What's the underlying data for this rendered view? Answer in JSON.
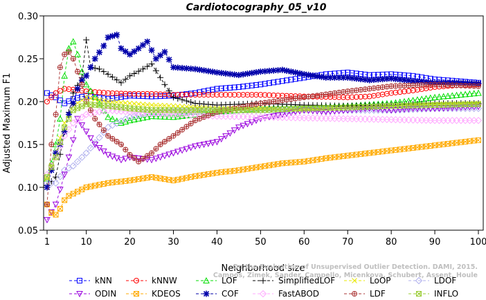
{
  "chart_data": {
    "type": "line",
    "title": "Cardiotocography_05_v10",
    "xlabel": "Neighborhood size",
    "ylabel": "Adjusted Maximum F1",
    "xlim": [
      1,
      100
    ],
    "ylim": [
      0.05,
      0.3
    ],
    "x_ticks": [
      1,
      10,
      20,
      30,
      40,
      50,
      60,
      70,
      80,
      90,
      100
    ],
    "y_ticks": [
      0.05,
      0.1,
      0.15,
      0.2,
      0.25,
      0.3
    ],
    "y_tick_labels": [
      "0.05",
      "0.10",
      "0.15",
      "0.20",
      "0.25",
      "0.30"
    ],
    "grid": false,
    "legend_position": "bottom",
    "watermark": "Campos, Zimek, Sander, Campello, Micenkova, Schubert, Assent, Houle\nOn the Evaluation of Unsupervised Outlier Detection. DAMI, 2015.",
    "series": [
      {
        "name": "kNN",
        "color": "#0000ff",
        "marker": "square",
        "dash": "4,3",
        "x": [
          1,
          3,
          5,
          7,
          10,
          15,
          20,
          25,
          30,
          35,
          40,
          45,
          50,
          55,
          60,
          65,
          70,
          75,
          80,
          85,
          90,
          95,
          100
        ],
        "y": [
          0.21,
          0.205,
          0.198,
          0.203,
          0.207,
          0.203,
          0.207,
          0.206,
          0.207,
          0.21,
          0.215,
          0.217,
          0.22,
          0.224,
          0.228,
          0.232,
          0.234,
          0.231,
          0.232,
          0.23,
          0.226,
          0.224,
          0.222
        ]
      },
      {
        "name": "kNNW",
        "color": "#ff0000",
        "marker": "circle",
        "dash": "4,3",
        "x": [
          1,
          3,
          5,
          7,
          10,
          15,
          20,
          25,
          30,
          40,
          50,
          60,
          70,
          75,
          80,
          85,
          90,
          95,
          100
        ],
        "y": [
          0.2,
          0.21,
          0.215,
          0.214,
          0.212,
          0.21,
          0.209,
          0.209,
          0.208,
          0.208,
          0.208,
          0.206,
          0.205,
          0.206,
          0.21,
          0.213,
          0.217,
          0.219,
          0.22
        ]
      },
      {
        "name": "LOF",
        "color": "#00dd00",
        "marker": "triangle",
        "dash": "4,3",
        "x": [
          1,
          2,
          3,
          4,
          5,
          6,
          7,
          8,
          9,
          10,
          12,
          15,
          18,
          20,
          25,
          30,
          35,
          40,
          50,
          60,
          70,
          80,
          90,
          100
        ],
        "y": [
          0.11,
          0.128,
          0.15,
          0.18,
          0.23,
          0.262,
          0.27,
          0.255,
          0.235,
          0.22,
          0.205,
          0.182,
          0.175,
          0.178,
          0.183,
          0.182,
          0.185,
          0.188,
          0.192,
          0.193,
          0.195,
          0.198,
          0.205,
          0.21
        ]
      },
      {
        "name": "SimplifiedLOF",
        "color": "#000000",
        "marker": "plus",
        "dash": "4,3",
        "x": [
          1,
          3,
          5,
          7,
          9,
          10,
          11,
          13,
          15,
          18,
          20,
          23,
          25,
          28,
          30,
          35,
          40,
          50,
          60,
          70,
          80,
          90,
          100
        ],
        "y": [
          0.102,
          0.112,
          0.165,
          0.21,
          0.228,
          0.272,
          0.24,
          0.238,
          0.232,
          0.222,
          0.23,
          0.238,
          0.244,
          0.22,
          0.205,
          0.198,
          0.196,
          0.198,
          0.196,
          0.195,
          0.196,
          0.198,
          0.198
        ]
      },
      {
        "name": "LoOP",
        "color": "#e8e800",
        "marker": "x",
        "dash": "4,3",
        "x": [
          1,
          3,
          5,
          7,
          10,
          15,
          20,
          25,
          30,
          40,
          50,
          60,
          70,
          80,
          90,
          100
        ],
        "y": [
          0.11,
          0.14,
          0.175,
          0.195,
          0.205,
          0.2,
          0.198,
          0.196,
          0.195,
          0.192,
          0.192,
          0.19,
          0.193,
          0.195,
          0.197,
          0.198
        ]
      },
      {
        "name": "LDOF",
        "color": "#b0b0ee",
        "marker": "diamond",
        "dash": "4,3",
        "x": [
          1,
          3,
          5,
          7,
          10,
          15,
          20,
          25,
          30,
          40,
          50,
          60,
          70,
          80,
          90,
          100
        ],
        "y": [
          0.105,
          0.105,
          0.12,
          0.125,
          0.14,
          0.17,
          0.182,
          0.187,
          0.188,
          0.189,
          0.19,
          0.19,
          0.19,
          0.19,
          0.192,
          0.192
        ]
      },
      {
        "name": "ODIN",
        "color": "#9900dd",
        "marker": "triangle-down",
        "dash": "4,3",
        "x": [
          1,
          3,
          5,
          7,
          8,
          10,
          12,
          15,
          18,
          20,
          25,
          30,
          35,
          40,
          45,
          50,
          55,
          60,
          65,
          70,
          75,
          80,
          85,
          90,
          95,
          100
        ],
        "y": [
          0.062,
          0.08,
          0.115,
          0.155,
          0.18,
          0.165,
          0.15,
          0.138,
          0.132,
          0.135,
          0.132,
          0.14,
          0.148,
          0.153,
          0.17,
          0.18,
          0.185,
          0.19,
          0.188,
          0.19,
          0.192,
          0.19,
          0.192,
          0.192,
          0.193,
          0.194
        ]
      },
      {
        "name": "KDEOS",
        "color": "#ffaa00",
        "marker": "square-x",
        "dash": "4,3",
        "x": [
          1,
          2,
          3,
          4,
          5,
          6,
          8,
          10,
          15,
          20,
          25,
          30,
          35,
          40,
          45,
          50,
          55,
          60,
          65,
          70,
          75,
          80,
          85,
          90,
          95,
          100
        ],
        "y": [
          0.08,
          0.07,
          0.068,
          0.075,
          0.085,
          0.09,
          0.095,
          0.1,
          0.105,
          0.108,
          0.112,
          0.108,
          0.113,
          0.117,
          0.12,
          0.124,
          0.128,
          0.13,
          0.134,
          0.137,
          0.14,
          0.143,
          0.146,
          0.149,
          0.152,
          0.155
        ]
      },
      {
        "name": "COF",
        "color": "#0000aa",
        "marker": "asterisk",
        "dash": "4,3",
        "x": [
          1,
          2,
          3,
          4,
          5,
          6,
          7,
          8,
          9,
          10,
          12,
          14,
          15,
          17,
          18,
          20,
          22,
          24,
          26,
          28,
          30,
          35,
          40,
          45,
          50,
          55,
          60,
          65,
          70,
          75,
          80,
          85,
          90,
          95,
          100
        ],
        "y": [
          0.1,
          0.12,
          0.14,
          0.15,
          0.165,
          0.185,
          0.198,
          0.215,
          0.225,
          0.23,
          0.25,
          0.265,
          0.275,
          0.278,
          0.262,
          0.255,
          0.262,
          0.27,
          0.25,
          0.258,
          0.24,
          0.238,
          0.234,
          0.231,
          0.235,
          0.237,
          0.232,
          0.228,
          0.228,
          0.225,
          0.227,
          0.224,
          0.222,
          0.222,
          0.221
        ]
      },
      {
        "name": "FastABOD",
        "color": "#ffaaff",
        "marker": "diamond",
        "dash": "4,3",
        "x": [
          1,
          3,
          5,
          7,
          10,
          15,
          20,
          25,
          30,
          40,
          50,
          60,
          70,
          80,
          90,
          100
        ],
        "y": [
          0.115,
          0.135,
          0.16,
          0.175,
          0.185,
          0.19,
          0.188,
          0.186,
          0.185,
          0.183,
          0.182,
          0.181,
          0.18,
          0.179,
          0.178,
          0.178
        ]
      },
      {
        "name": "LDF",
        "color": "#aa3333",
        "marker": "circle-plus",
        "dash": "4,3",
        "x": [
          1,
          2,
          3,
          4,
          5,
          6,
          7,
          8,
          9,
          10,
          12,
          15,
          18,
          20,
          22,
          25,
          27,
          30,
          35,
          40,
          50,
          60,
          70,
          80,
          90,
          100
        ],
        "y": [
          0.08,
          0.15,
          0.185,
          0.24,
          0.255,
          0.258,
          0.25,
          0.235,
          0.22,
          0.2,
          0.18,
          0.16,
          0.15,
          0.138,
          0.13,
          0.14,
          0.15,
          0.16,
          0.178,
          0.188,
          0.198,
          0.205,
          0.212,
          0.218,
          0.22,
          0.218
        ]
      },
      {
        "name": "INFLO",
        "color": "#99cc33",
        "marker": "square-x",
        "dash": "4,3",
        "x": [
          1,
          3,
          5,
          7,
          10,
          15,
          20,
          25,
          30,
          40,
          50,
          60,
          70,
          80,
          90,
          100
        ],
        "y": [
          0.112,
          0.135,
          0.17,
          0.19,
          0.197,
          0.195,
          0.192,
          0.19,
          0.19,
          0.19,
          0.19,
          0.192,
          0.193,
          0.195,
          0.196,
          0.197
        ]
      }
    ]
  }
}
